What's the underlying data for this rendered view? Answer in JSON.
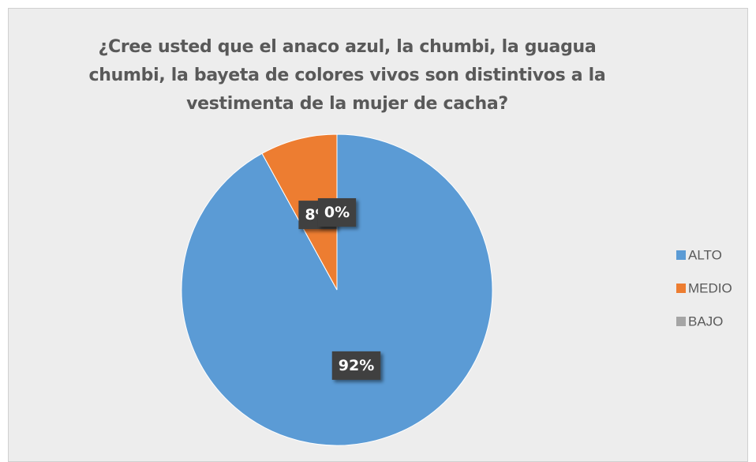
{
  "chart_data": {
    "type": "pie",
    "title": "¿Cree usted que el anaco azul, la chumbi, la guagua chumbi, la bayeta de colores vivos son distintivos a la vestimenta de la mujer de cacha?",
    "categories": [
      "ALTO",
      "MEDIO",
      "BAJO"
    ],
    "values": [
      92,
      8,
      0
    ],
    "value_labels": [
      "92%",
      "8%",
      "0%"
    ],
    "colors": [
      "#5b9bd5",
      "#ed7d31",
      "#a5a5a5"
    ],
    "legend": "right"
  }
}
